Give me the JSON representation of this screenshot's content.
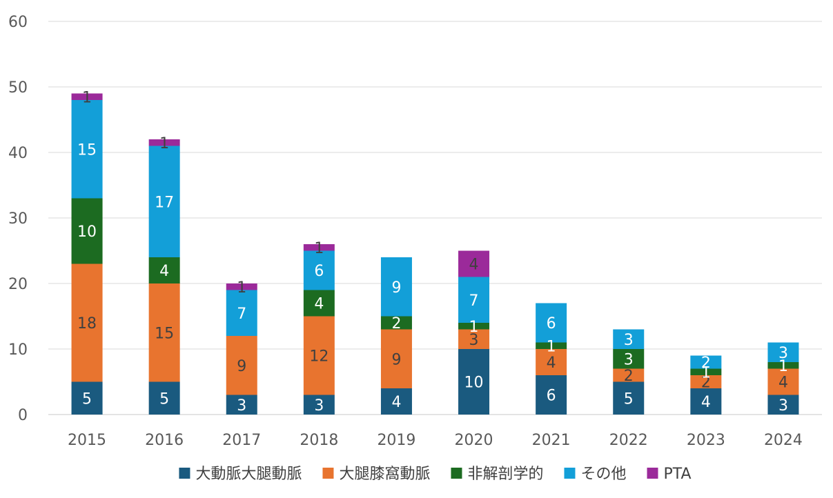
{
  "chart_data": {
    "type": "bar",
    "stacked": true,
    "categories": [
      "2015",
      "2016",
      "2017",
      "2018",
      "2019",
      "2020",
      "2021",
      "2022",
      "2023",
      "2024"
    ],
    "ylim": [
      0,
      60
    ],
    "yticks": [
      "0",
      "10",
      "20",
      "30",
      "40",
      "50",
      "60"
    ],
    "grid": true,
    "legend_position": "bottom",
    "series": [
      {
        "name": "大動脈大腿動脈",
        "color": "#1a5a7f",
        "label_color": "#ffffff",
        "values": [
          5,
          5,
          3,
          3,
          4,
          10,
          6,
          5,
          4,
          3
        ]
      },
      {
        "name": "大腿膝窩動脈",
        "color": "#e8742f",
        "label_color": "#404040",
        "values": [
          18,
          15,
          9,
          12,
          9,
          3,
          4,
          2,
          2,
          4
        ]
      },
      {
        "name": "非解剖学的",
        "color": "#1c6b21",
        "label_color": "#ffffff",
        "values": [
          10,
          4,
          0,
          4,
          2,
          1,
          1,
          3,
          1,
          1
        ]
      },
      {
        "name": "その他",
        "color": "#139fd8",
        "label_color": "#ffffff",
        "values": [
          15,
          17,
          7,
          6,
          9,
          7,
          6,
          3,
          2,
          3
        ]
      },
      {
        "name": "PTA",
        "color": "#9b2a9a",
        "label_color": "#404040",
        "values": [
          1,
          1,
          1,
          1,
          0,
          4,
          0,
          0,
          0,
          0
        ]
      }
    ]
  }
}
